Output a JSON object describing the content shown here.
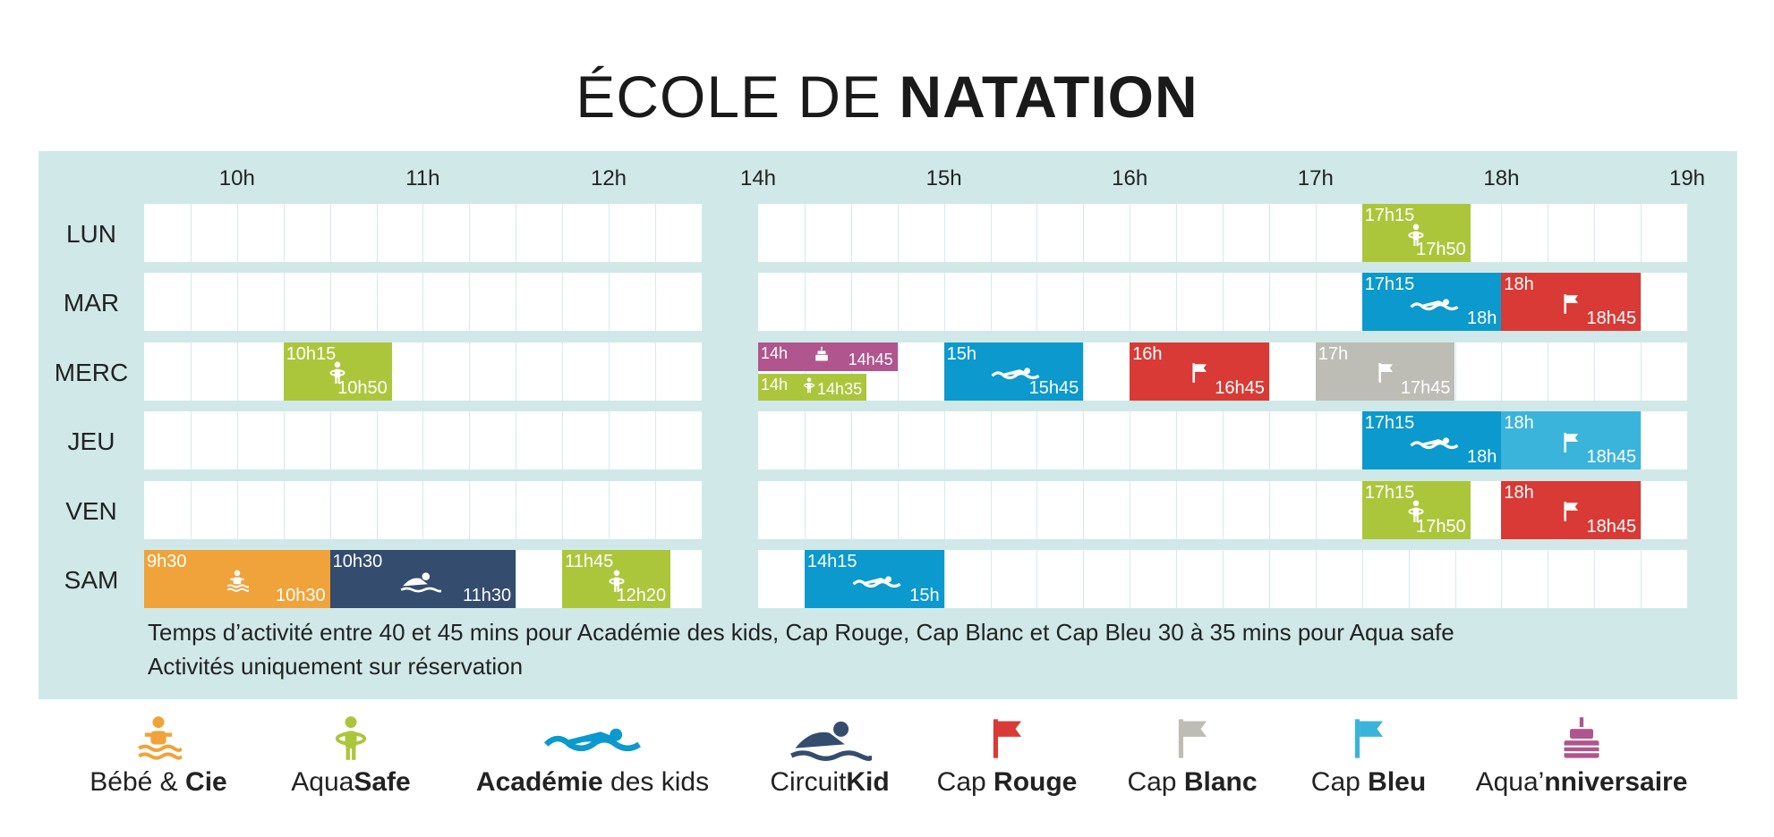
{
  "title": {
    "light": "ÉCOLE DE",
    "bold": "NATATION"
  },
  "hours": [
    "10h",
    "11h",
    "12h",
    "14h",
    "15h",
    "16h",
    "17h",
    "18h",
    "19h"
  ],
  "days": [
    "LUN",
    "MAR",
    "MERC",
    "JEU",
    "VEN",
    "SAM"
  ],
  "colors": {
    "bebe": "#f0a33a",
    "aquasafe": "#acc63c",
    "academie": "#0b99ce",
    "circuit": "#344c6e",
    "rouge": "#d93a35",
    "blanc": "#bdbcb5",
    "bleu": "#3bb4dc",
    "anniv": "#b0558e",
    "panel": "#d0e9e8"
  },
  "schedule": [
    {
      "day": 0,
      "start": "17h15",
      "end": "17h50",
      "type": "aquasafe"
    },
    {
      "day": 1,
      "start": "17h15",
      "end": "18h",
      "type": "academie"
    },
    {
      "day": 1,
      "start": "18h",
      "end": "18h45",
      "type": "rouge"
    },
    {
      "day": 2,
      "start": "10h15",
      "end": "10h50",
      "type": "aquasafe"
    },
    {
      "day": 2,
      "start": "14h",
      "end": "14h45",
      "type": "anniv",
      "half": "top"
    },
    {
      "day": 2,
      "start": "14h",
      "end": "14h35",
      "type": "aquasafe",
      "half": "bottom"
    },
    {
      "day": 2,
      "start": "15h",
      "end": "15h45",
      "type": "academie"
    },
    {
      "day": 2,
      "start": "16h",
      "end": "16h45",
      "type": "rouge"
    },
    {
      "day": 2,
      "start": "17h",
      "end": "17h45",
      "type": "blanc"
    },
    {
      "day": 3,
      "start": "17h15",
      "end": "18h",
      "type": "academie"
    },
    {
      "day": 3,
      "start": "18h",
      "end": "18h45",
      "type": "bleu"
    },
    {
      "day": 4,
      "start": "17h15",
      "end": "17h50",
      "type": "aquasafe"
    },
    {
      "day": 4,
      "start": "18h",
      "end": "18h45",
      "type": "rouge"
    },
    {
      "day": 5,
      "start": "9h30",
      "end": "10h30",
      "type": "bebe"
    },
    {
      "day": 5,
      "start": "10h30",
      "end": "11h30",
      "type": "circuit"
    },
    {
      "day": 5,
      "start": "11h45",
      "end": "12h20",
      "type": "aquasafe"
    },
    {
      "day": 5,
      "start": "14h15",
      "end": "15h",
      "type": "academie"
    }
  ],
  "notes": {
    "line1": "Temps d’activité entre 40 et 45 mins pour Académie des kids, Cap Rouge, Cap Blanc et Cap Bleu 30 à 35 mins pour Aqua safe",
    "line2": "Activités uniquement sur réservation"
  },
  "legend": [
    {
      "key": "bebe",
      "icon": "baby-swimmer-icon",
      "parts": [
        {
          "t": "Bébé & ",
          "b": false
        },
        {
          "t": "Cie",
          "b": true
        }
      ]
    },
    {
      "key": "aquasafe",
      "icon": "child-float-icon",
      "parts": [
        {
          "t": "Aqua",
          "b": false
        },
        {
          "t": "Safe",
          "b": true
        }
      ]
    },
    {
      "key": "academie",
      "icon": "swimmer-wave-icon",
      "parts": [
        {
          "t": "Académie",
          "b": true
        },
        {
          "t": " des kids",
          "b": false
        }
      ]
    },
    {
      "key": "circuit",
      "icon": "swimmer-icon",
      "parts": [
        {
          "t": "Circuit",
          "b": false
        },
        {
          "t": "Kid",
          "b": true
        }
      ]
    },
    {
      "key": "rouge",
      "icon": "red-flag-icon",
      "parts": [
        {
          "t": "Cap ",
          "b": false
        },
        {
          "t": "Rouge",
          "b": true
        }
      ]
    },
    {
      "key": "blanc",
      "icon": "white-flag-icon",
      "parts": [
        {
          "t": "Cap ",
          "b": false
        },
        {
          "t": "Blanc",
          "b": true
        }
      ]
    },
    {
      "key": "bleu",
      "icon": "blue-flag-icon",
      "parts": [
        {
          "t": "Cap ",
          "b": false
        },
        {
          "t": "Bleu",
          "b": true
        }
      ]
    },
    {
      "key": "anniv",
      "icon": "birthday-cake-icon",
      "parts": [
        {
          "t": "Aqua’",
          "b": false
        },
        {
          "t": "nniversaire",
          "b": true
        }
      ]
    }
  ]
}
